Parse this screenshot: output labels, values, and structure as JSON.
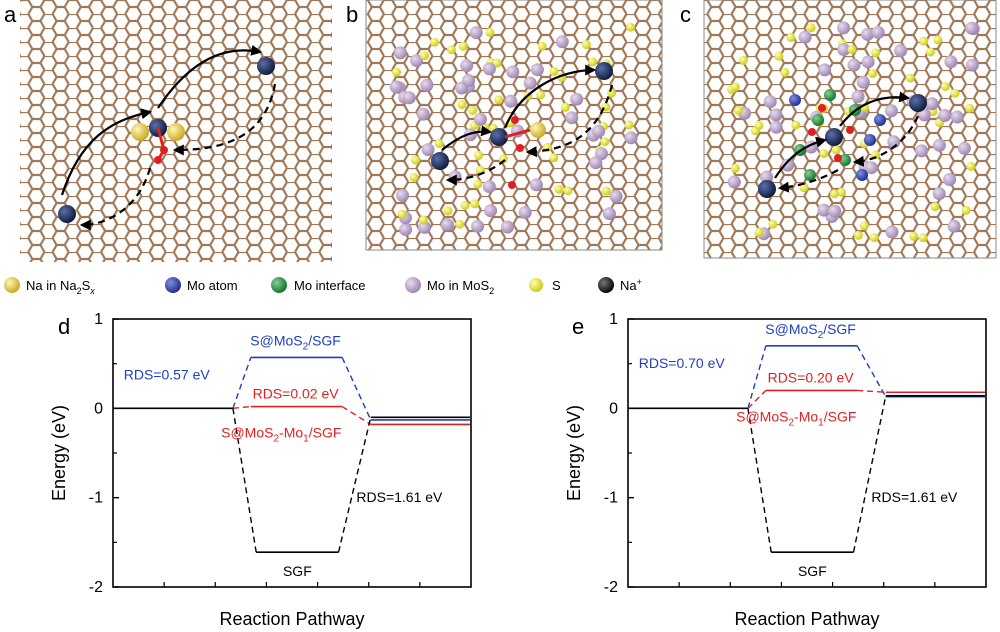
{
  "panels": {
    "a": {
      "label": "a"
    },
    "b": {
      "label": "b"
    },
    "c": {
      "label": "c"
    },
    "d": {
      "label": "d"
    },
    "e": {
      "label": "e"
    }
  },
  "legend": [
    {
      "text": "Na in Na2Sx",
      "base": "Na in Na",
      "sub": "2",
      "mid": "S",
      "sub2": "x",
      "color": "#e8c832"
    },
    {
      "text": "Mo atom",
      "base": "Mo atom",
      "color": "#2e3c9e"
    },
    {
      "text": "Mo interface",
      "base": "Mo interface",
      "color": "#1f8a3a"
    },
    {
      "text": "Mo in MoS2",
      "base": "Mo in MoS",
      "sub": "2",
      "color": "#b59ec4"
    },
    {
      "text": "S",
      "base": "S",
      "color": "#e8e830"
    },
    {
      "text": "Na+",
      "base": "Na",
      "sup": "+",
      "color": "#111111"
    }
  ],
  "colors": {
    "lattice": "#a07858",
    "blue": "#1f3fc0",
    "red": "#e02020",
    "black": "#000000",
    "na_ion": "#1a2a5a"
  },
  "chart_data": [
    {
      "type": "line",
      "panel": "d",
      "ylabel": "Energy (eV)",
      "xlabel": "Reaction Pathway",
      "ylim": [
        -2,
        1
      ],
      "yticks": [
        "1",
        "0",
        "-1",
        "-2"
      ],
      "series": [
        {
          "name": "S@MoS2/SGF",
          "color": "#1f3fc0",
          "levels": [
            0,
            0.57,
            -0.13
          ]
        },
        {
          "name": "S@MoS2-Mo1/SGF",
          "color": "#e02020",
          "levels": [
            0,
            0.02,
            -0.18
          ]
        },
        {
          "name": "SGF",
          "color": "#000000",
          "levels": [
            0,
            -1.61,
            -0.1
          ]
        }
      ],
      "annotations": {
        "blue_rds": "RDS=0.57 eV",
        "red_rds": "RDS=0.02 eV",
        "black_rds": "RDS=1.61 eV",
        "blue_name": {
          "base": "S@MoS",
          "sub": "2",
          "tail": "/SGF"
        },
        "red_name": {
          "base": "S@MoS",
          "sub": "2",
          "mid": "-Mo",
          "sub2": "1",
          "tail": "/SGF"
        },
        "black_name": "SGF"
      }
    },
    {
      "type": "line",
      "panel": "e",
      "ylabel": "Energy (eV)",
      "xlabel": "Reaction Pathway",
      "ylim": [
        -2,
        1
      ],
      "yticks": [
        "1",
        "0",
        "-1",
        "-2"
      ],
      "series": [
        {
          "name": "S@MoS2/SGF",
          "color": "#1f3fc0",
          "levels": [
            0,
            0.7,
            0.13
          ]
        },
        {
          "name": "S@MoS2-Mo1/SGF",
          "color": "#e02020",
          "levels": [
            0,
            0.2,
            0.18
          ]
        },
        {
          "name": "SGF",
          "color": "#000000",
          "levels": [
            0,
            -1.61,
            0.14
          ]
        }
      ],
      "annotations": {
        "blue_rds": "RDS=0.70 eV",
        "red_rds": "RDS=0.20 eV",
        "black_rds": "RDS=1.61 eV",
        "blue_name": {
          "base": "S@MoS",
          "sub": "2",
          "tail": "/SGF"
        },
        "red_name": {
          "base": "S@MoS",
          "sub": "2",
          "mid": "-Mo",
          "sub2": "1",
          "tail": "/SGF"
        },
        "black_name": "SGF"
      }
    }
  ]
}
